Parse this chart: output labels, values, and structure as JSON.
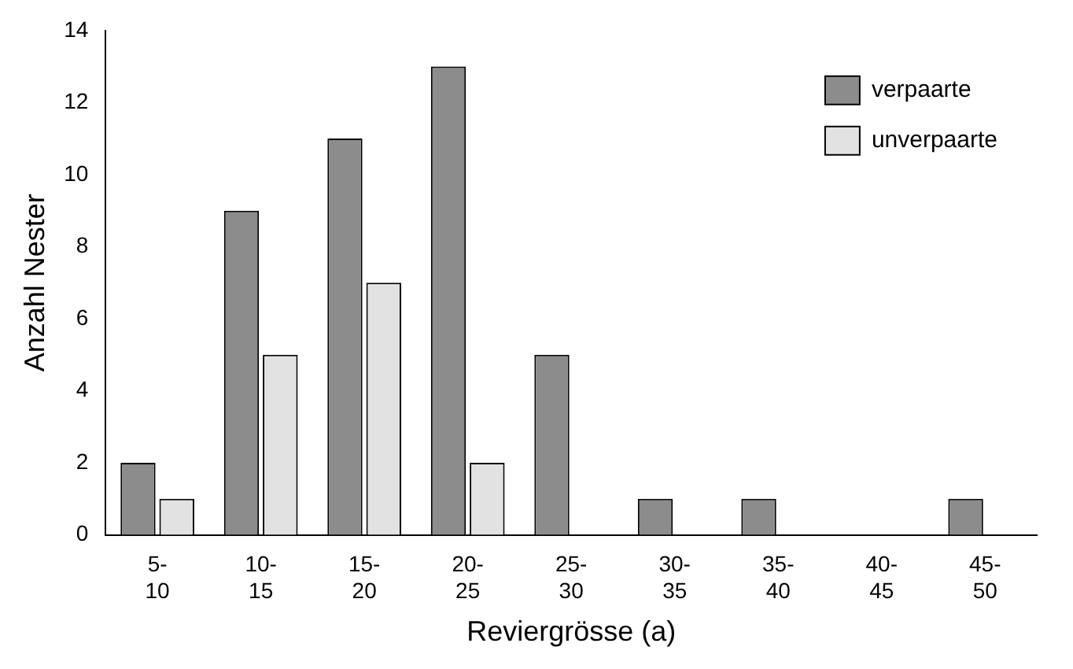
{
  "chart_data": {
    "type": "bar",
    "xlabel": "Reviergrösse (a)",
    "ylabel": "Anzahl Nester",
    "categories": [
      "5-10",
      "10-15",
      "15-20",
      "20-25",
      "25-30",
      "30-35",
      "35-40",
      "40-45",
      "45-50"
    ],
    "series": [
      {
        "name": "verpaarte",
        "color": "#8c8c8c",
        "values": [
          2,
          9,
          11,
          13,
          5,
          1,
          1,
          0,
          1
        ]
      },
      {
        "name": "unverpaarte",
        "color": "#e2e2e2",
        "values": [
          1,
          5,
          7,
          2,
          0,
          0,
          0,
          0,
          0
        ]
      }
    ],
    "ylim": [
      0,
      14
    ],
    "yticks": [
      0,
      2,
      4,
      6,
      8,
      10,
      12,
      14
    ],
    "grid": false,
    "legend": "top right"
  }
}
